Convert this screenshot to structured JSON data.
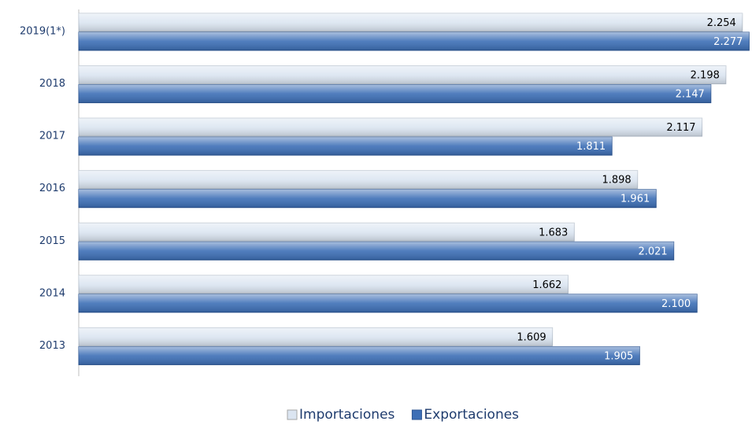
{
  "chart_data": {
    "type": "bar",
    "orientation": "horizontal",
    "categories": [
      "2019(1*)",
      "2018",
      "2017",
      "2016",
      "2015",
      "2014",
      "2013"
    ],
    "series": [
      {
        "name": "Importaciones",
        "color": "#dbe5f1",
        "values": [
          2.254,
          2.198,
          2.117,
          1.898,
          1.683,
          1.662,
          1.609
        ],
        "value_labels": [
          "2.254",
          "2.198",
          "2.117",
          "1.898",
          "1.683",
          "1.662",
          "1.609"
        ]
      },
      {
        "name": "Exportaciones",
        "color": "#3d6fb6",
        "values": [
          2.277,
          2.147,
          1.811,
          1.961,
          2.021,
          2.1,
          1.905
        ],
        "value_labels": [
          "2.277",
          "2.147",
          "1.811",
          "1.961",
          "2.021",
          "2.100",
          "1.905"
        ]
      }
    ],
    "xlim": [
      0,
      2.3
    ],
    "legend": "bottom"
  }
}
